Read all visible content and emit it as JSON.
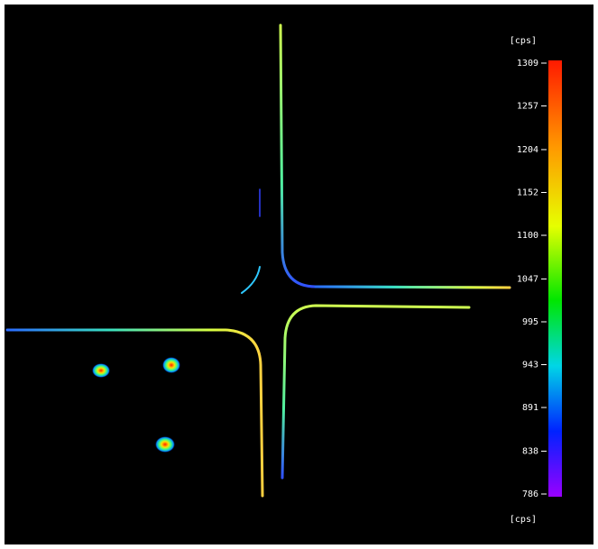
{
  "colorbar": {
    "unit_top": "[cps]",
    "unit_bottom": "[cps]",
    "ticks": [
      1309,
      1257,
      1204,
      1152,
      1100,
      1047,
      995,
      943,
      891,
      838,
      786
    ]
  }
}
